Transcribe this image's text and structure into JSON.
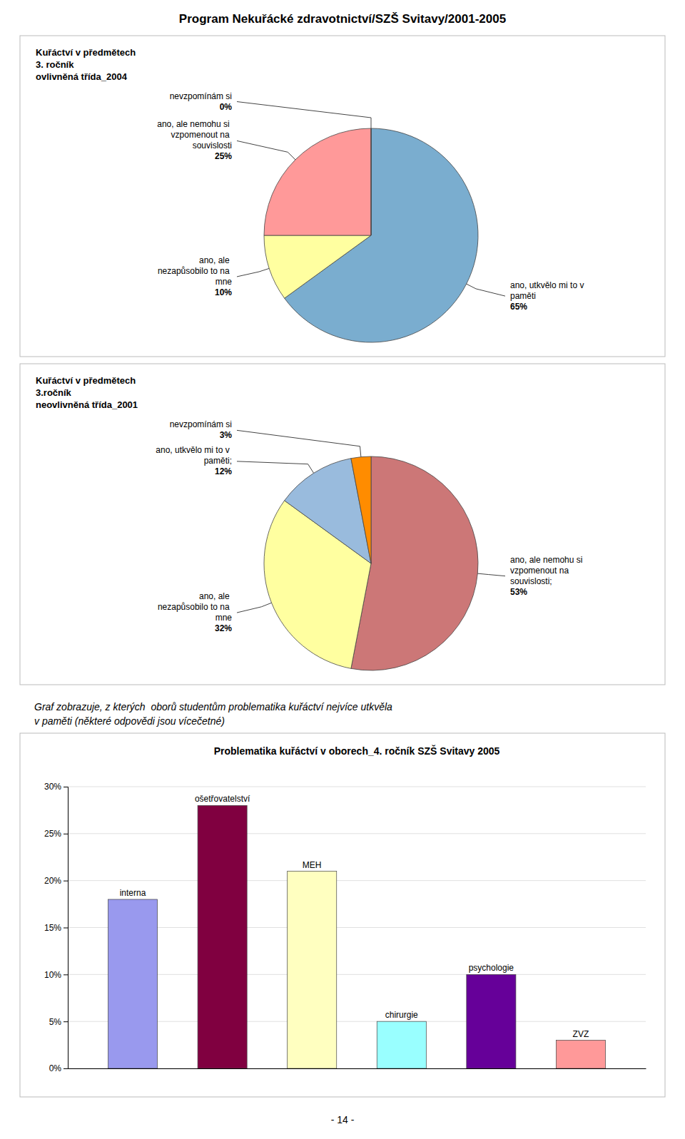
{
  "title": "Program Nekuřácké zdravotnictví/SZŠ Svitavy/2001-2005",
  "chart_data": [
    {
      "type": "pie",
      "subtitle": [
        "Kuřáctví v předmětech",
        "3. ročník",
        "ovlivněná třída_2004"
      ],
      "categories": [
        "ano, utkvělo mi to v paměti",
        "ano, ale nezapůsobilo to na mne",
        "ano, ale nemohu si vzpomenout na souvislosti",
        "nevzpomínám si"
      ],
      "values": [
        65,
        10,
        25,
        0
      ],
      "value_labels": [
        "65%",
        "10%",
        "25%",
        "0%"
      ],
      "colors": [
        "#7AADCF",
        "#FFFFA0",
        "#FF9999",
        "#8B3A3A"
      ]
    },
    {
      "type": "pie",
      "subtitle": [
        "Kuřáctví v předmětech",
        "3.ročník",
        "neovlivněná třída_2001"
      ],
      "categories": [
        "ano, ale nemohu si vzpomenout na souvislosti;",
        "ano, ale nezapůsobilo to na mne",
        "ano, utkvělo mi to v paměti;",
        "nevzpomínám si"
      ],
      "values": [
        53,
        32,
        12,
        3
      ],
      "value_labels": [
        "53%",
        "32%",
        "12%",
        "3%"
      ],
      "colors": [
        "#CC7777",
        "#FFFFA0",
        "#99BBDD",
        "#FF8C00"
      ]
    },
    {
      "type": "bar",
      "title": "Problematika kuřáctví v oborech_4. ročník SZŠ Svitavy 2005",
      "subtitle": [
        "Graf zobrazuje, z kterých  oborů studentům problematika kuřáctví nejvíce utkvěla",
        "v paměti (některé odpovědi jsou vícečetné)"
      ],
      "categories": [
        "interna",
        "ošetřovatelství",
        "MEH",
        "chirurgie",
        "psychologie",
        "ZVZ"
      ],
      "values": [
        18,
        28,
        21,
        5,
        10,
        3
      ],
      "colors": [
        "#9999EE",
        "#800040",
        "#FFFFC0",
        "#99FFFF",
        "#660099",
        "#FF9999"
      ],
      "ylim": [
        0,
        30
      ],
      "yticks": [
        {
          "value": 0,
          "label": "0%"
        },
        {
          "value": 5,
          "label": "5%"
        },
        {
          "value": 10,
          "label": "10%"
        },
        {
          "value": 15,
          "label": "15%"
        },
        {
          "value": 20,
          "label": "20%"
        },
        {
          "value": 25,
          "label": "25%"
        },
        {
          "value": 30,
          "label": "30%"
        }
      ],
      "grid": true,
      "tick_labels": "y"
    }
  ],
  "annotations": [
    "- 14 -"
  ]
}
